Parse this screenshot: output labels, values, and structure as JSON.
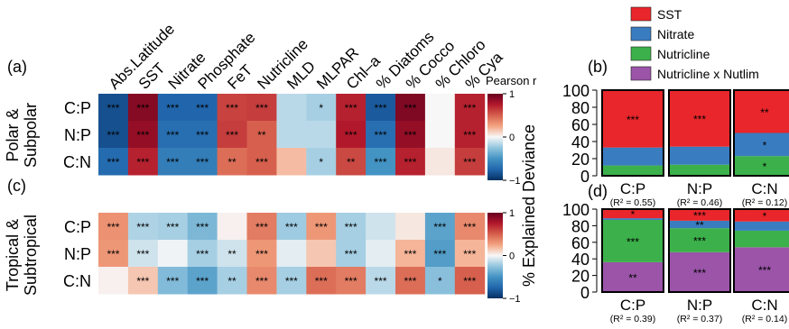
{
  "chart_data": [
    {
      "type": "heatmap",
      "panel": "(a)",
      "group_label": [
        "Polar &",
        "Subpolar"
      ],
      "rows": [
        "C:P",
        "N:P",
        "C:N"
      ],
      "columns": [
        "Abs.Latitude",
        "SST",
        "Nitrate",
        "Phosphate",
        "FeT",
        "Nutricline",
        "MLD",
        "MLPAR",
        "Chl–a",
        "% Diatoms",
        "% Cocco",
        "% Chloro",
        "% Cya"
      ],
      "values": [
        [
          -0.85,
          0.9,
          -0.75,
          -0.75,
          0.6,
          0.62,
          -0.15,
          -0.2,
          0.72,
          -0.8,
          0.92,
          0.0,
          0.72
        ],
        [
          -0.85,
          0.85,
          -0.7,
          -0.7,
          0.62,
          0.5,
          -0.15,
          -0.15,
          0.75,
          -0.7,
          0.85,
          0.0,
          0.72
        ],
        [
          -0.72,
          0.72,
          -0.62,
          -0.62,
          0.45,
          0.5,
          0.18,
          -0.2,
          0.58,
          -0.5,
          0.72,
          0.05,
          0.62
        ]
      ],
      "significance": [
        [
          "***",
          "***",
          "***",
          "***",
          "***",
          "***",
          "",
          "*",
          "***",
          "***",
          "***",
          "",
          "***"
        ],
        [
          "***",
          "***",
          "***",
          "***",
          "***",
          "**",
          "",
          "",
          "***",
          "***",
          "***",
          "",
          "***"
        ],
        [
          "***",
          "***",
          "***",
          "***",
          "**",
          "***",
          "",
          "*",
          "**",
          "***",
          "***",
          "",
          "***"
        ]
      ],
      "colorbar": {
        "label": "Pearson r",
        "ticks": [
          -1,
          0,
          1
        ],
        "range": [
          -1,
          1
        ]
      }
    },
    {
      "type": "heatmap",
      "panel": "(c)",
      "group_label": [
        "Tropical &",
        "Subtropical"
      ],
      "rows": [
        "C:P",
        "N:P",
        "C:N"
      ],
      "columns": [
        "Abs.Latitude",
        "SST",
        "Nitrate",
        "Phosphate",
        "FeT",
        "Nutricline",
        "MLD",
        "MLPAR",
        "Chl–a",
        "% Diatoms",
        "% Cocco",
        "% Chloro",
        "% Cya"
      ],
      "values": [
        [
          0.32,
          -0.18,
          -0.2,
          -0.32,
          0.02,
          0.4,
          -0.22,
          0.3,
          -0.2,
          -0.1,
          0.05,
          -0.42,
          0.35
        ],
        [
          0.3,
          -0.1,
          -0.02,
          -0.2,
          -0.1,
          0.3,
          -0.05,
          0.15,
          -0.2,
          -0.05,
          0.2,
          -0.45,
          0.2
        ],
        [
          0.02,
          0.15,
          -0.3,
          -0.42,
          -0.2,
          0.35,
          -0.2,
          0.45,
          0.4,
          -0.15,
          0.45,
          -0.28,
          0.5
        ]
      ],
      "significance": [
        [
          "***",
          "***",
          "***",
          "***",
          "",
          "***",
          "***",
          "***",
          "***",
          "",
          "",
          "***",
          "***"
        ],
        [
          "***",
          "***",
          "",
          "***",
          "**",
          "***",
          "",
          "",
          "***",
          "",
          "***",
          "***",
          "***"
        ],
        [
          "",
          "***",
          "***",
          "***",
          "**",
          "***",
          "***",
          "***",
          "***",
          "***",
          "***",
          "*",
          "***"
        ]
      ],
      "colorbar": {
        "label": "",
        "ticks": [
          -1,
          0,
          1
        ],
        "range": [
          -1,
          1
        ]
      }
    },
    {
      "type": "bar",
      "stacked": true,
      "panel": "(b)",
      "categories": [
        "C:P",
        "N:P",
        "C:N"
      ],
      "r2_labels": [
        "(R² = 0.55)",
        "(R² = 0.46)",
        "(R² = 0.12)"
      ],
      "ylabel": "% Explained Deviance",
      "ylim": [
        0,
        100
      ],
      "yticks": [
        0,
        20,
        40,
        60,
        80,
        100
      ],
      "series": [
        {
          "name": "Nutricline",
          "values": [
            12,
            13,
            23
          ],
          "significance": [
            "",
            "",
            "*"
          ]
        },
        {
          "name": "Nitrate",
          "values": [
            21,
            21,
            27
          ],
          "significance": [
            "",
            "",
            "*"
          ]
        },
        {
          "name": "SST",
          "values": [
            67,
            66,
            50
          ],
          "significance": [
            "***",
            "***",
            "**"
          ]
        }
      ]
    },
    {
      "type": "bar",
      "stacked": true,
      "panel": "(d)",
      "categories": [
        "C:P",
        "N:P",
        "C:N"
      ],
      "r2_labels": [
        "(R² = 0.39)",
        "(R² = 0.37)",
        "(R² = 0.14)"
      ],
      "ylabel": "% Explained Deviance",
      "ylim": [
        0,
        100
      ],
      "yticks": [
        0,
        20,
        40,
        60,
        80,
        100
      ],
      "series": [
        {
          "name": "Nutricline x Nutlim",
          "values": [
            36,
            48,
            54
          ],
          "significance": [
            "**",
            "***",
            "***"
          ]
        },
        {
          "name": "Nutricline",
          "values": [
            51,
            29,
            20
          ],
          "significance": [
            "***",
            "***",
            ""
          ]
        },
        {
          "name": "Nitrate",
          "values": [
            2,
            9,
            11
          ],
          "significance": [
            "",
            "**",
            ""
          ]
        },
        {
          "name": "SST",
          "values": [
            11,
            14,
            15
          ],
          "significance": [
            "*",
            "***",
            "*"
          ]
        }
      ]
    }
  ],
  "legend": [
    {
      "name": "SST",
      "color": "#e8262b"
    },
    {
      "name": "Nitrate",
      "color": "#3a7cc0"
    },
    {
      "name": "Nutricline",
      "color": "#3cb04a"
    },
    {
      "name": "Nutricline x Nutlim",
      "color": "#9b54a8"
    }
  ]
}
